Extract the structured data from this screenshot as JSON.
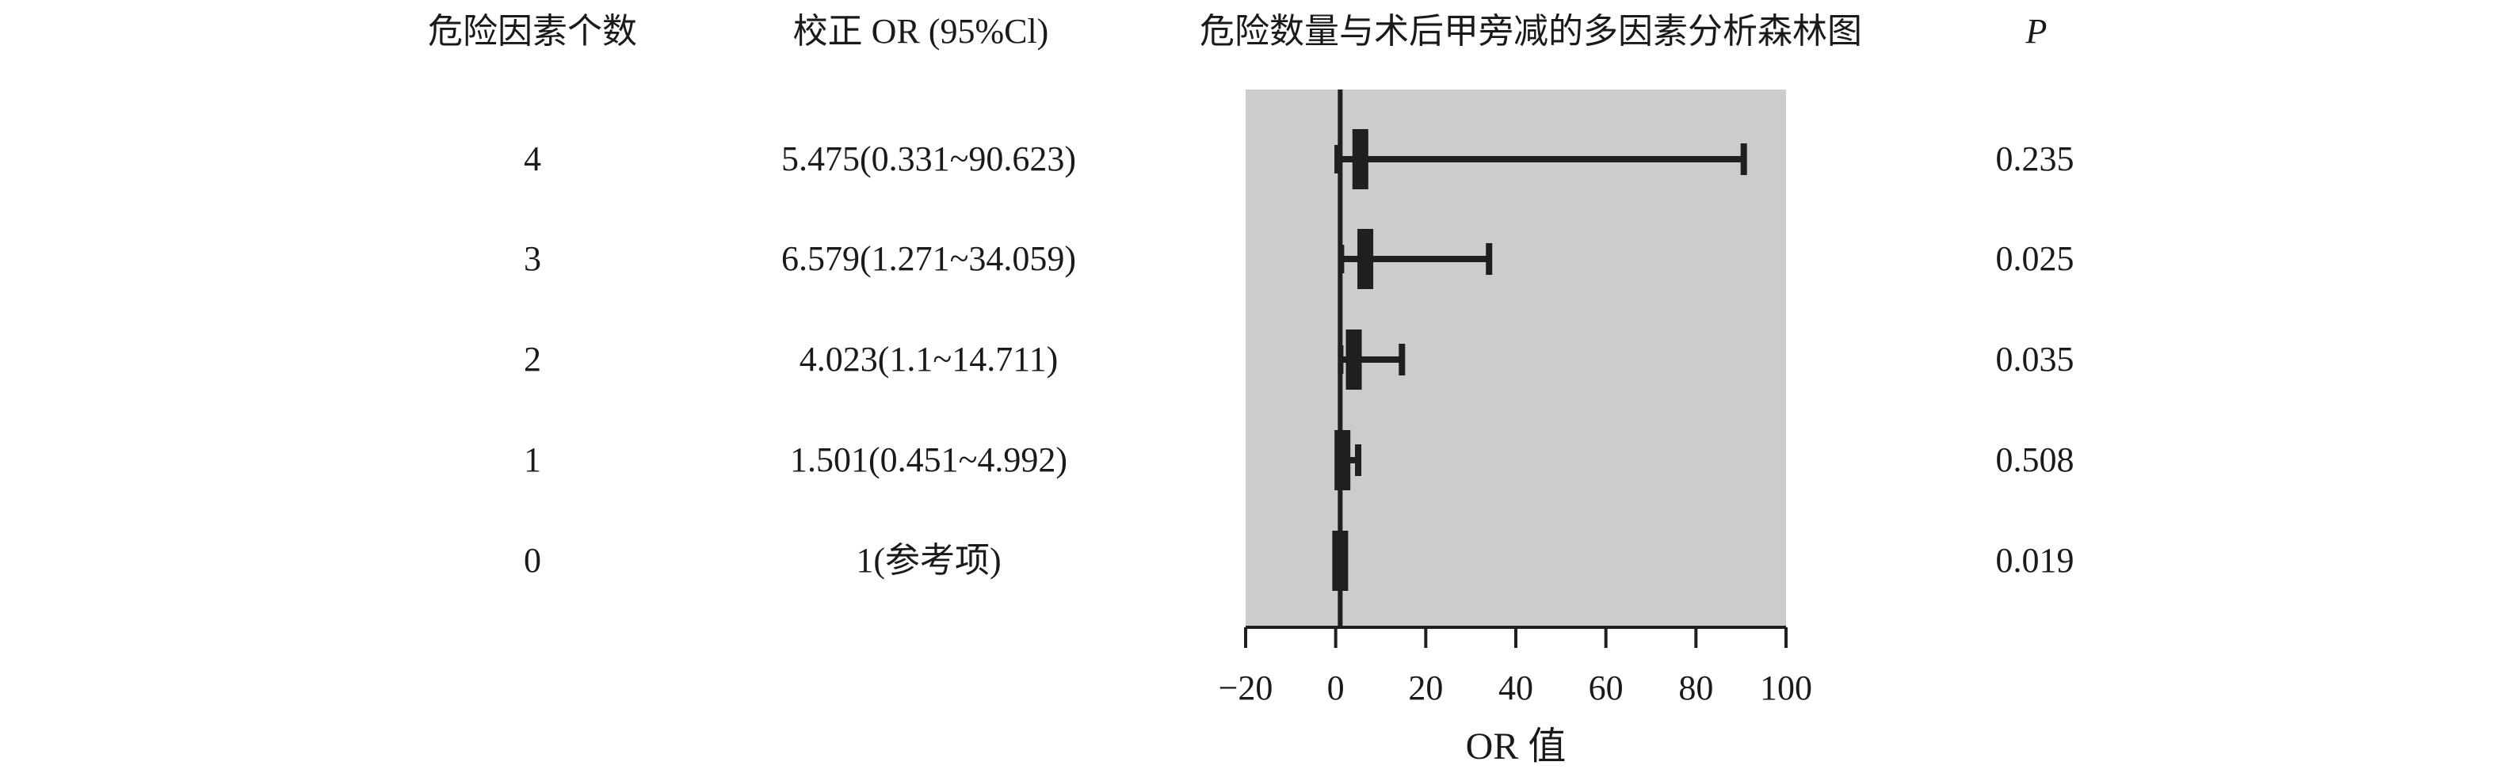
{
  "headers": {
    "risk_count": "危险因素个数",
    "or_ci": "校正 OR (95%Cl)",
    "chart_title": "危险数量与术后甲旁减的多因素分析森林图",
    "p": "P"
  },
  "rows": [
    {
      "count": "4",
      "or_ci_text": "5.475(0.331~90.623)",
      "p": "0.235"
    },
    {
      "count": "3",
      "or_ci_text": "6.579(1.271~34.059)",
      "p": "0.025"
    },
    {
      "count": "2",
      "or_ci_text": "4.023(1.1~14.711)",
      "p": "0.035"
    },
    {
      "count": "1",
      "or_ci_text": "1.501(0.451~4.992)",
      "p": "0.508"
    },
    {
      "count": "0",
      "or_ci_text": "1(参考项)",
      "p": "0.019"
    }
  ],
  "chart_data": {
    "type": "forest",
    "title": "危险数量与术后甲旁减的多因素分析森林图",
    "xlabel": "OR 值",
    "xlim": [
      -20,
      100
    ],
    "xticks": [
      "−20",
      "0",
      "20",
      "40",
      "60",
      "80",
      "100"
    ],
    "reference_line": 1,
    "categories": [
      "4",
      "3",
      "2",
      "1",
      "0"
    ],
    "or": [
      5.475,
      6.579,
      4.023,
      1.501,
      1
    ],
    "ci_low": [
      0.331,
      1.271,
      1.1,
      0.451,
      1
    ],
    "ci_high": [
      90.623,
      34.059,
      14.711,
      4.992,
      1
    ],
    "colors": {
      "panel": "#cccccc",
      "marks": "#1f1f1f"
    }
  }
}
